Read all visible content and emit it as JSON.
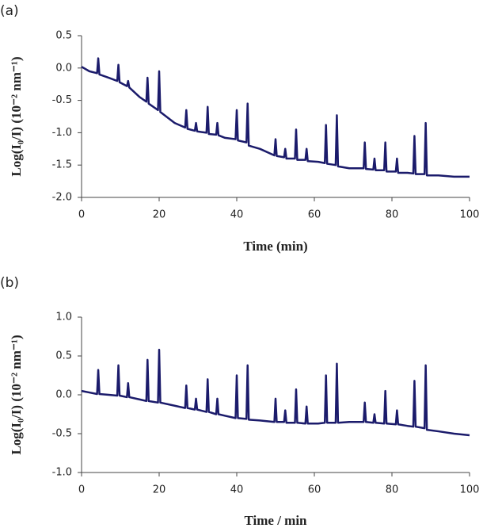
{
  "chart_data": [
    {
      "type": "line",
      "panel_label": "(a)",
      "x_label": "Time (min)",
      "y_label": "Log(I₀/I) (10⁻² nm⁻¹)",
      "xlim": [
        0,
        100
      ],
      "xticks": [
        0,
        20,
        40,
        60,
        80,
        100
      ],
      "ylim": [
        -2.0,
        0.5
      ],
      "yticks": [
        0.5,
        {
          "value": 0,
          "label": "0.0"
        },
        -0.5,
        {
          "value": -1,
          "label": "-1.0"
        },
        -1.5,
        {
          "value": -2,
          "label": "-2.0"
        }
      ],
      "x": [
        0,
        2,
        4,
        4.3,
        4.6,
        7,
        9.2,
        9.5,
        9.8,
        11.7,
        12,
        12.3,
        15,
        16.7,
        17,
        17.3,
        19.7,
        20,
        20.3,
        24,
        26.7,
        27,
        27.3,
        29.2,
        29.5,
        29.8,
        32.2,
        32.5,
        32.8,
        34.7,
        35,
        35.3,
        37,
        39.7,
        40,
        40.3,
        42.5,
        42.8,
        43.1,
        46,
        49.7,
        50,
        50.3,
        52.2,
        52.5,
        52.8,
        55,
        55.3,
        55.6,
        57.7,
        58,
        58.3,
        61,
        62.7,
        63,
        63.3,
        65.5,
        65.8,
        66.1,
        69,
        72.7,
        73,
        73.3,
        75.2,
        75.5,
        75.8,
        78,
        78.3,
        78.6,
        81,
        81.3,
        81.6,
        84,
        85.5,
        85.8,
        86.1,
        88.4,
        88.7,
        89,
        92,
        96,
        100
      ],
      "series": [
        {
          "color": "#1b1b6b",
          "values": [
            0.02,
            -0.05,
            -0.08,
            0.15,
            -0.1,
            -0.15,
            -0.2,
            0.05,
            -0.22,
            -0.28,
            -0.2,
            -0.3,
            -0.45,
            -0.52,
            -0.15,
            -0.55,
            -0.65,
            -0.05,
            -0.68,
            -0.85,
            -0.92,
            -0.65,
            -0.94,
            -0.97,
            -0.85,
            -0.98,
            -1.0,
            -0.6,
            -1.02,
            -1.03,
            -0.85,
            -1.04,
            -1.08,
            -1.1,
            -0.65,
            -1.12,
            -1.15,
            -0.55,
            -1.2,
            -1.25,
            -1.35,
            -1.1,
            -1.36,
            -1.38,
            -1.25,
            -1.4,
            -1.4,
            -0.95,
            -1.42,
            -1.42,
            -1.25,
            -1.44,
            -1.45,
            -1.47,
            -0.88,
            -1.48,
            -1.5,
            -0.73,
            -1.52,
            -1.55,
            -1.55,
            -1.15,
            -1.56,
            -1.57,
            -1.4,
            -1.58,
            -1.58,
            -1.15,
            -1.6,
            -1.6,
            -1.4,
            -1.62,
            -1.62,
            -1.63,
            -1.05,
            -1.64,
            -1.64,
            -0.85,
            -1.66,
            -1.66,
            -1.68,
            -1.68
          ]
        }
      ]
    },
    {
      "type": "line",
      "panel_label": "(b)",
      "x_label": "Time / min",
      "y_label": "Log(I₀/I) (10⁻² nm⁻¹)",
      "xlim": [
        0,
        100
      ],
      "xticks": [
        0,
        20,
        40,
        60,
        80,
        100
      ],
      "ylim": [
        -1.0,
        1.0
      ],
      "yticks": [
        {
          "value": 1,
          "label": "1.0"
        },
        0.5,
        {
          "value": 0,
          "label": "0.0"
        },
        -0.5,
        {
          "value": -1,
          "label": "-1.0"
        }
      ],
      "x": [
        0,
        2,
        4,
        4.3,
        4.6,
        7,
        9.2,
        9.5,
        9.8,
        11.7,
        12,
        12.3,
        15,
        16.7,
        17,
        17.3,
        19.7,
        20,
        20.3,
        24,
        26.7,
        27,
        27.3,
        29.2,
        29.5,
        29.8,
        32.2,
        32.5,
        32.8,
        34.7,
        35,
        35.3,
        37,
        39.7,
        40,
        40.3,
        42.5,
        42.8,
        43.1,
        46,
        49.7,
        50,
        50.3,
        52.2,
        52.5,
        52.8,
        55,
        55.3,
        55.6,
        57.7,
        58,
        58.3,
        61,
        62.7,
        63,
        63.3,
        65.5,
        65.8,
        66.1,
        69,
        72.7,
        73,
        73.3,
        75.2,
        75.5,
        75.8,
        78,
        78.3,
        78.6,
        81,
        81.3,
        81.6,
        84,
        85.5,
        85.8,
        86.1,
        88.4,
        88.7,
        89,
        92,
        96,
        100
      ],
      "series": [
        {
          "color": "#1b1b6b",
          "values": [
            0.05,
            0.03,
            0.01,
            0.32,
            0.01,
            0.0,
            -0.01,
            0.38,
            -0.01,
            -0.03,
            0.15,
            -0.03,
            -0.06,
            -0.08,
            0.45,
            -0.08,
            -0.1,
            0.58,
            -0.1,
            -0.14,
            -0.17,
            0.12,
            -0.17,
            -0.19,
            -0.05,
            -0.19,
            -0.22,
            0.2,
            -0.22,
            -0.25,
            -0.05,
            -0.25,
            -0.27,
            -0.3,
            0.25,
            -0.3,
            -0.31,
            0.38,
            -0.32,
            -0.33,
            -0.35,
            -0.05,
            -0.35,
            -0.35,
            -0.2,
            -0.36,
            -0.36,
            0.07,
            -0.36,
            -0.37,
            -0.15,
            -0.37,
            -0.37,
            -0.36,
            0.25,
            -0.36,
            -0.36,
            0.4,
            -0.36,
            -0.35,
            -0.35,
            -0.1,
            -0.35,
            -0.36,
            -0.25,
            -0.36,
            -0.37,
            0.05,
            -0.37,
            -0.38,
            -0.2,
            -0.38,
            -0.4,
            -0.41,
            0.18,
            -0.41,
            -0.43,
            0.38,
            -0.45,
            -0.47,
            -0.5,
            -0.52
          ]
        }
      ]
    }
  ]
}
